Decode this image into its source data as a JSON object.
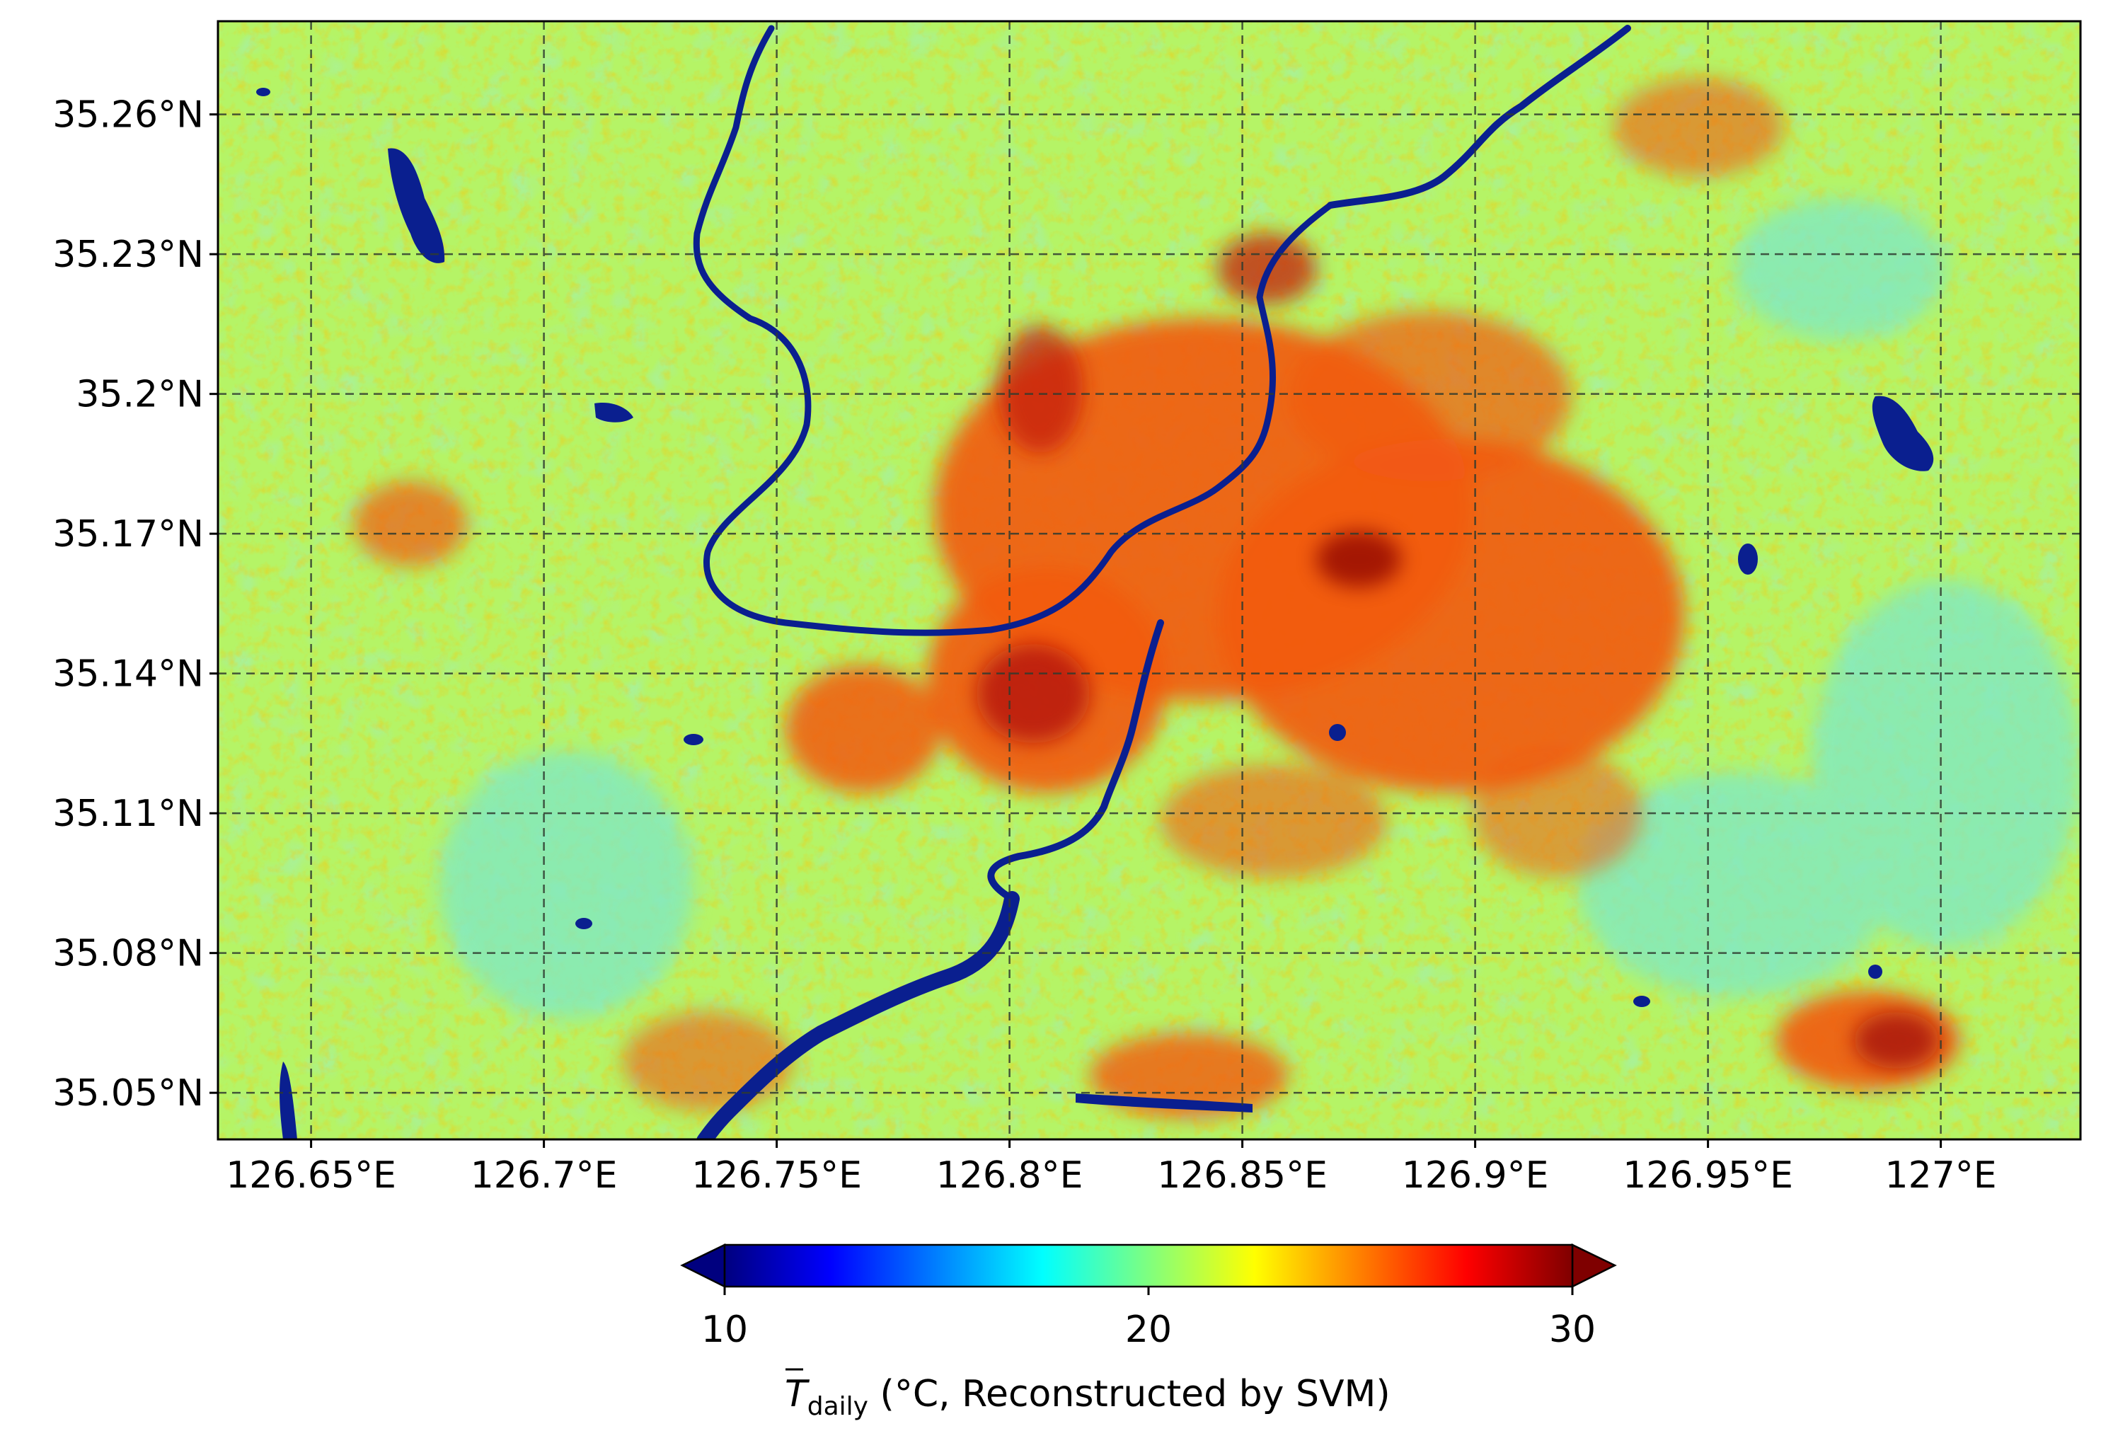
{
  "map": {
    "type": "heatmap",
    "title": "",
    "projection": "geographic lat/lon",
    "lon_range": [
      126.63,
      127.03
    ],
    "lat_range": [
      35.04,
      35.28
    ],
    "lon_ticks": [
      {
        "value": 126.65,
        "label": "126.65°E"
      },
      {
        "value": 126.7,
        "label": "126.7°E"
      },
      {
        "value": 126.75,
        "label": "126.75°E"
      },
      {
        "value": 126.8,
        "label": "126.8°E"
      },
      {
        "value": 126.85,
        "label": "126.85°E"
      },
      {
        "value": 126.9,
        "label": "126.9°E"
      },
      {
        "value": 126.95,
        "label": "126.95°E"
      },
      {
        "value": 127.0,
        "label": "127°E"
      }
    ],
    "lat_ticks": [
      {
        "value": 35.05,
        "label": "35.05°N"
      },
      {
        "value": 35.08,
        "label": "35.08°N"
      },
      {
        "value": 35.11,
        "label": "35.11°N"
      },
      {
        "value": 35.14,
        "label": "35.14°N"
      },
      {
        "value": 35.17,
        "label": "35.17°N"
      },
      {
        "value": 35.2,
        "label": "35.2°N"
      },
      {
        "value": 35.23,
        "label": "35.23°N"
      },
      {
        "value": 35.26,
        "label": "35.26°N"
      }
    ],
    "grid": true,
    "grid_style": "dashed",
    "colormap": "jet",
    "background_color": "#b5f466",
    "urban_color": "#f25a12",
    "water_color": "#0a1f8f",
    "cool_color": "#7ee8c8"
  },
  "colorbar": {
    "min": 10,
    "max": 30,
    "extend": "both",
    "orientation": "horizontal",
    "ticks": [
      {
        "value": 10,
        "label": "10"
      },
      {
        "value": 20,
        "label": "20"
      },
      {
        "value": 30,
        "label": "30"
      }
    ],
    "label_symbol": "T",
    "label_subscript": "daily",
    "label_text": " (°C, Reconstructed by SVM)",
    "stops": [
      "#00007f",
      "#0000ff",
      "#007fff",
      "#00ffff",
      "#7fff7f",
      "#ffff00",
      "#ff7f00",
      "#ff0000",
      "#7f0000"
    ]
  }
}
